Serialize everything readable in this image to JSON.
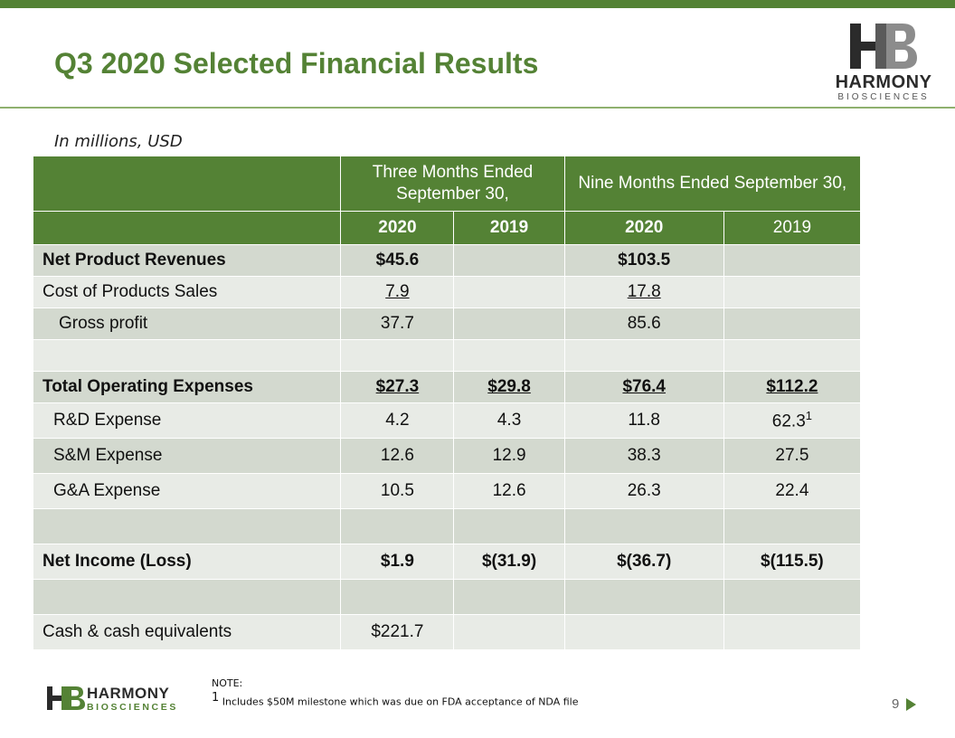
{
  "slide": {
    "title": "Q3 2020 Selected Financial Results",
    "units": "In millions, USD",
    "page_number": "9"
  },
  "logo": {
    "name": "HARMONY",
    "subtitle": "BIOSCIENCES"
  },
  "colors": {
    "brand_green": "#548235",
    "row_dark": "#d3d9cf",
    "row_light": "#e8ebe6"
  },
  "table": {
    "group_headers": [
      "Three Months Ended September 30,",
      "Nine Months Ended September 30,"
    ],
    "year_headers": [
      "2020",
      "2019",
      "2020",
      "2019"
    ],
    "rows": [
      {
        "label": "Net Product Revenues",
        "values": [
          "$45.6",
          "",
          "$103.5",
          ""
        ]
      },
      {
        "label": "Cost of Products Sales",
        "values": [
          "7.9",
          "",
          "17.8",
          ""
        ]
      },
      {
        "label": "Gross profit",
        "values": [
          "37.7",
          "",
          "85.6",
          ""
        ]
      },
      {
        "label": "",
        "values": [
          "",
          "",
          "",
          ""
        ]
      },
      {
        "label": "Total Operating Expenses",
        "values": [
          "$27.3",
          "$29.8",
          "$76.4",
          "$112.2"
        ]
      },
      {
        "label": "R&D Expense",
        "values": [
          "4.2",
          "4.3",
          "11.8",
          "62.3"
        ],
        "footnote_ref": "1"
      },
      {
        "label": "S&M Expense",
        "values": [
          "12.6",
          "12.9",
          "38.3",
          "27.5"
        ]
      },
      {
        "label": "G&A Expense",
        "values": [
          "10.5",
          "12.6",
          "26.3",
          "22.4"
        ]
      },
      {
        "label": "",
        "values": [
          "",
          "",
          "",
          ""
        ]
      },
      {
        "label": "Net Income (Loss)",
        "values": [
          "$1.9",
          "$(31.9)",
          "$(36.7)",
          "$(115.5)"
        ]
      },
      {
        "label": "",
        "values": [
          "",
          "",
          "",
          ""
        ]
      },
      {
        "label": "Cash & cash equivalents",
        "values": [
          "$221.7",
          "",
          "",
          ""
        ]
      }
    ]
  },
  "note": {
    "heading": "NOTE:",
    "footnote_marker": "1",
    "footnote_text": " Includes $50M milestone which was due on FDA acceptance of NDA file"
  }
}
